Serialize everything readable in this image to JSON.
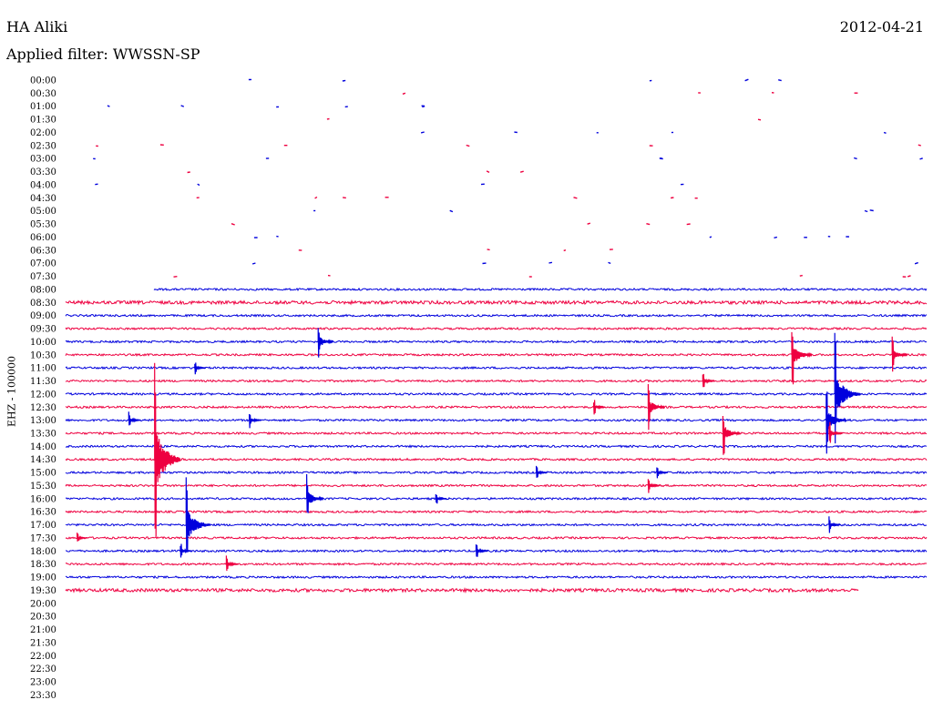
{
  "header": {
    "station": "HA Aliki",
    "filter": "Applied filter: WWSSN-SP",
    "date": "2012-04-21"
  },
  "chart_data": {
    "type": "line",
    "title": "HA Aliki",
    "subtitle": "Applied filter: WWSSN-SP",
    "ylabel": "EHZ - 100000",
    "row_labels": [
      "00:00",
      "00:30",
      "01:00",
      "01:30",
      "02:00",
      "02:30",
      "03:00",
      "03:30",
      "04:00",
      "04:30",
      "05:00",
      "05:30",
      "06:00",
      "06:30",
      "07:00",
      "07:30",
      "08:00",
      "08:30",
      "09:00",
      "09:30",
      "10:00",
      "10:30",
      "11:00",
      "11:30",
      "12:00",
      "12:30",
      "13:00",
      "13:30",
      "14:00",
      "14:30",
      "15:00",
      "15:30",
      "16:00",
      "16:30",
      "17:00",
      "17:30",
      "18:00",
      "18:30",
      "19:00",
      "19:30",
      "20:00",
      "20:30",
      "21:00",
      "21:30",
      "22:00",
      "22:30",
      "23:00",
      "23:30"
    ],
    "colors": [
      "#0000dd",
      "#ee0040"
    ],
    "continuous_from_row": 16,
    "last_row_with_data": 39,
    "minutes_per_row": 30,
    "events": [
      {
        "row": 20,
        "minute": 8.8,
        "amp": 22
      },
      {
        "row": 21,
        "minute": 25.3,
        "amp": 40
      },
      {
        "row": 21,
        "minute": 28.8,
        "amp": 22
      },
      {
        "row": 22,
        "minute": 4.5,
        "amp": 8
      },
      {
        "row": 23,
        "minute": 22.2,
        "amp": 10
      },
      {
        "row": 24,
        "minute": 26.8,
        "amp": 70
      },
      {
        "row": 25,
        "minute": 20.3,
        "amp": 28
      },
      {
        "row": 25,
        "minute": 18.4,
        "amp": 10
      },
      {
        "row": 26,
        "minute": 2.2,
        "amp": 10
      },
      {
        "row": 26,
        "minute": 6.4,
        "amp": 10
      },
      {
        "row": 26,
        "minute": 26.5,
        "amp": 40
      },
      {
        "row": 27,
        "minute": 22.9,
        "amp": 30
      },
      {
        "row": 27,
        "minute": 26.6,
        "amp": 15
      },
      {
        "row": 29,
        "minute": 3.1,
        "amp": 115
      },
      {
        "row": 30,
        "minute": 16.4,
        "amp": 8
      },
      {
        "row": 30,
        "minute": 20.6,
        "amp": 8
      },
      {
        "row": 31,
        "minute": 20.3,
        "amp": 10
      },
      {
        "row": 32,
        "minute": 8.4,
        "amp": 28
      },
      {
        "row": 32,
        "minute": 12.9,
        "amp": 8
      },
      {
        "row": 34,
        "minute": 4.2,
        "amp": 55
      },
      {
        "row": 34,
        "minute": 26.6,
        "amp": 10
      },
      {
        "row": 35,
        "minute": 0.4,
        "amp": 6
      },
      {
        "row": 36,
        "minute": 14.3,
        "amp": 10
      },
      {
        "row": 36,
        "minute": 4,
        "amp": 10
      },
      {
        "row": 37,
        "minute": 5.6,
        "amp": 10
      }
    ]
  }
}
